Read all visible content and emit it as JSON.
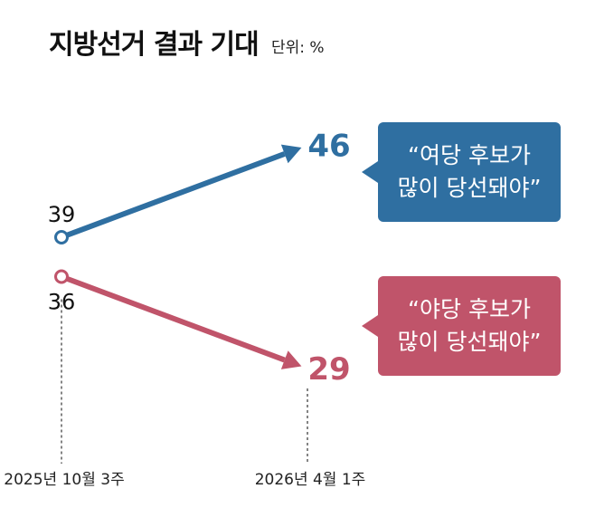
{
  "title": "지방선거 결과 기대",
  "unit_label": "단위: %",
  "chart_data": {
    "type": "line",
    "title": "지방선거 결과 기대",
    "unit": "단위: %",
    "categories": [
      "2025년 10월 3주",
      "2026년 4월 1주"
    ],
    "series": [
      {
        "key": "ruling",
        "values": [
          39,
          46
        ],
        "color": "#2f6fa1"
      },
      {
        "key": "opposition",
        "values": [
          36,
          29
        ],
        "color": "#c0546a"
      }
    ]
  },
  "callouts": {
    "ruling": {
      "line1": "“여당 후보가",
      "line2": "많이 당선돼야”"
    },
    "opposition": {
      "line1": "“야당 후보가",
      "line2": "많이 당선돼야”"
    }
  }
}
